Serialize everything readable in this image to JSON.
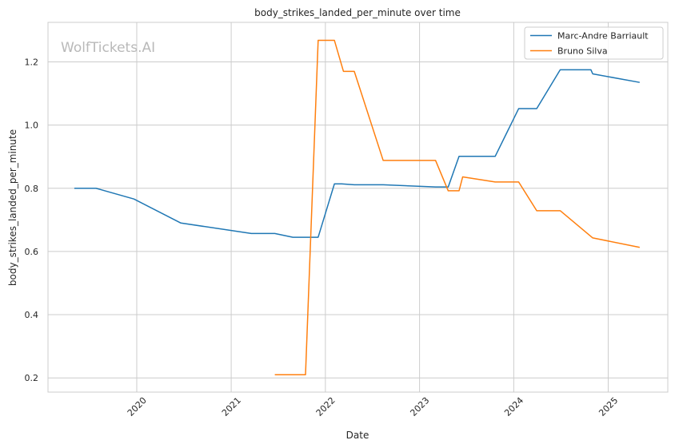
{
  "chart_data": {
    "type": "line",
    "title": "body_strikes_landed_per_minute over time",
    "xlabel": "Date",
    "ylabel": "body_strikes_landed_per_minute",
    "watermark": "WolfTickets.AI",
    "xlim": [
      "2019-01-22",
      "2025-08-20"
    ],
    "ylim": [
      0.155,
      1.325
    ],
    "x_ticks": [
      "2020-01-01",
      "2021-01-01",
      "2022-01-01",
      "2023-01-01",
      "2024-01-01",
      "2025-01-01"
    ],
    "x_tick_labels": [
      "2020",
      "2021",
      "2022",
      "2023",
      "2024",
      "2025"
    ],
    "y_ticks": [
      0.2,
      0.4,
      0.6,
      0.8,
      1.0,
      1.2
    ],
    "y_tick_labels": [
      "0.2",
      "0.4",
      "0.6",
      "0.8",
      "1.0",
      "1.2"
    ],
    "grid": true,
    "legend_position": "top-right",
    "series": [
      {
        "name": "Marc-Andre Barriault",
        "color": "#1f77b4",
        "points": [
          [
            "2019-05-04",
            0.8
          ],
          [
            "2019-07-27",
            0.8
          ],
          [
            "2019-12-21",
            0.766
          ],
          [
            "2020-06-20",
            0.69
          ],
          [
            "2021-03-20",
            0.657
          ],
          [
            "2021-06-19",
            0.657
          ],
          [
            "2021-08-28",
            0.645
          ],
          [
            "2021-12-04",
            0.645
          ],
          [
            "2022-02-05",
            0.814
          ],
          [
            "2022-03-05",
            0.814
          ],
          [
            "2022-04-23",
            0.811
          ],
          [
            "2022-08-13",
            0.811
          ],
          [
            "2023-03-04",
            0.804
          ],
          [
            "2023-04-22",
            0.804
          ],
          [
            "2023-06-03",
            0.901
          ],
          [
            "2023-10-21",
            0.901
          ],
          [
            "2024-01-20",
            1.052
          ],
          [
            "2024-03-30",
            1.052
          ],
          [
            "2024-06-29",
            1.175
          ],
          [
            "2024-10-26",
            1.175
          ],
          [
            "2024-11-02",
            1.162
          ],
          [
            "2025-05-03",
            1.135
          ]
        ]
      },
      {
        "name": "Bruno Silva",
        "color": "#ff7f0e",
        "points": [
          [
            "2021-06-19",
            0.21
          ],
          [
            "2021-10-16",
            0.21
          ],
          [
            "2021-12-04",
            1.268
          ],
          [
            "2022-02-05",
            1.268
          ],
          [
            "2022-03-12",
            1.17
          ],
          [
            "2022-04-23",
            1.17
          ],
          [
            "2022-08-13",
            0.888
          ],
          [
            "2023-03-04",
            0.888
          ],
          [
            "2023-04-22",
            0.792
          ],
          [
            "2023-06-03",
            0.792
          ],
          [
            "2023-06-17",
            0.836
          ],
          [
            "2023-10-21",
            0.82
          ],
          [
            "2024-01-20",
            0.82
          ],
          [
            "2024-03-30",
            0.729
          ],
          [
            "2024-06-29",
            0.729
          ],
          [
            "2024-11-02",
            0.643
          ],
          [
            "2025-05-03",
            0.613
          ]
        ]
      }
    ]
  }
}
